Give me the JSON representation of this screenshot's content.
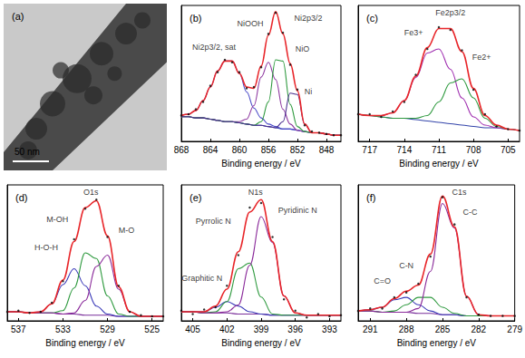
{
  "chart_data": [
    {
      "type": "image",
      "title": "(a)",
      "annotations": [
        {
          "text": "50 nm"
        }
      ]
    },
    {
      "type": "line",
      "title": "(b)",
      "xlabel": "Binding energy / eV",
      "x": [
        868,
        867,
        866,
        865,
        864,
        863,
        862,
        861,
        860,
        859,
        858,
        857,
        856,
        855,
        854,
        853,
        852,
        851,
        850,
        849,
        848,
        847,
        846
      ],
      "xlim": [
        868,
        846
      ],
      "xticks": [
        868,
        864,
        860,
        856,
        852,
        848
      ],
      "ylim": [
        0,
        110
      ],
      "grid": false,
      "tick_labels": "x",
      "series": [
        {
          "type": "line",
          "color": "#3344aa",
          "line_style": "solid",
          "values": [
            20,
            20,
            19,
            19,
            18,
            17,
            16,
            16,
            15,
            14,
            13,
            13,
            12,
            11,
            10,
            10,
            9,
            8,
            7,
            7,
            6,
            5,
            5
          ]
        },
        {
          "type": "line",
          "color": "#4a4ac8",
          "line_style": "solid",
          "values": [
            21,
            22,
            25,
            33,
            44,
            57,
            65,
            65,
            55,
            40,
            27,
            19,
            14,
            12,
            10,
            10,
            9,
            8,
            7,
            7,
            6,
            5,
            5
          ]
        },
        {
          "type": "line",
          "color": "#8e3aa0",
          "line_style": "solid",
          "values": [
            20,
            20,
            19,
            19,
            18,
            17,
            16,
            16,
            16,
            18,
            29,
            52,
            64,
            50,
            26,
            14,
            9,
            8,
            7,
            7,
            6,
            5,
            5
          ]
        },
        {
          "type": "line",
          "color": "#2f9a3f",
          "line_style": "solid",
          "values": [
            20,
            20,
            19,
            19,
            18,
            17,
            16,
            16,
            15,
            14,
            13,
            16,
            32,
            66,
            65,
            30,
            12,
            8,
            7,
            7,
            6,
            5,
            5
          ]
        },
        {
          "type": "line",
          "color": "#4b2f8f",
          "line_style": "solid",
          "values": [
            20,
            20,
            19,
            19,
            18,
            17,
            16,
            16,
            15,
            14,
            13,
            13,
            12,
            11,
            16,
            39,
            38,
            14,
            7,
            7,
            6,
            5,
            5
          ]
        },
        {
          "type": "line",
          "color": "#e8262a",
          "line_style": "solid",
          "values": [
            21,
            22,
            25,
            33,
            44,
            57,
            65,
            65,
            55,
            44,
            43,
            61,
            86,
            105,
            87,
            63,
            41,
            14,
            7,
            7,
            6,
            5,
            5
          ]
        },
        {
          "type": "scatter",
          "color": "#000000",
          "marker": "circle",
          "values": [
            21,
            22,
            26,
            32,
            45,
            56,
            66,
            64,
            56,
            43,
            44,
            60,
            87,
            104,
            88,
            62,
            42,
            13,
            8,
            7,
            6,
            5,
            5
          ]
        }
      ],
      "annotations": [
        {
          "text": "Ni2p3/2",
          "x": 850.5,
          "y": 100
        },
        {
          "text": "Ni2p3/2, sat",
          "x": 863.5,
          "y": 76
        },
        {
          "text": "NiOOH",
          "x": 858.5,
          "y": 95
        },
        {
          "text": "NiO",
          "x": 851.3,
          "y": 75
        },
        {
          "text": "Ni",
          "x": 850.5,
          "y": 40
        }
      ]
    },
    {
      "type": "line",
      "title": "(c)",
      "xlabel": "Binding energy / eV",
      "x": [
        718,
        717,
        716,
        715,
        714,
        713,
        712,
        711,
        710,
        709,
        708,
        707,
        706,
        705,
        704
      ],
      "xlim": [
        718,
        704
      ],
      "xticks": [
        717,
        714,
        711,
        708,
        705
      ],
      "ylim": [
        0,
        100
      ],
      "grid": false,
      "tick_labels": "x",
      "series": [
        {
          "type": "line",
          "color": "#3344aa",
          "line_style": "solid",
          "values": [
            20,
            19,
            18,
            17,
            17,
            16,
            15,
            14,
            13,
            12,
            11,
            10,
            10,
            9,
            8
          ]
        },
        {
          "type": "line",
          "color": "#a030b0",
          "line_style": "solid",
          "values": [
            20,
            19,
            19,
            21,
            30,
            47,
            65,
            68,
            53,
            32,
            18,
            12,
            10,
            9,
            8
          ]
        },
        {
          "type": "line",
          "color": "#2f9a3f",
          "line_style": "solid",
          "values": [
            20,
            19,
            18,
            17,
            17,
            17,
            19,
            29,
            43,
            46,
            32,
            17,
            11,
            9,
            8
          ]
        },
        {
          "type": "line",
          "color": "#e8262a",
          "line_style": "solid",
          "values": [
            20,
            19,
            19,
            21,
            30,
            48,
            69,
            83,
            83,
            66,
            39,
            19,
            12,
            9,
            8
          ]
        },
        {
          "type": "scatter",
          "color": "#000000",
          "marker": "circle",
          "values": [
            20,
            20,
            18,
            22,
            29,
            49,
            68,
            84,
            82,
            67,
            38,
            20,
            11,
            9,
            8
          ]
        }
      ],
      "annotations": [
        {
          "text": "Fe2p3/2",
          "x": 710,
          "y": 95
        },
        {
          "text": "Fe3+",
          "x": 713.2,
          "y": 80
        },
        {
          "text": "Fe2+",
          "x": 707.3,
          "y": 62
        }
      ]
    },
    {
      "type": "line",
      "title": "(d)",
      "xlabel": "Binding energy / eV",
      "x": [
        538,
        537,
        536,
        535,
        534,
        533,
        532,
        531,
        530,
        529,
        528,
        527,
        526,
        525,
        524
      ],
      "xlim": [
        538,
        524
      ],
      "xticks": [
        537,
        533,
        529,
        525
      ],
      "ylim": [
        0,
        120
      ],
      "grid": false,
      "tick_labels": "x",
      "series": [
        {
          "type": "line",
          "color": "#7a2f9a",
          "line_style": "solid",
          "values": [
            8,
            8,
            7,
            7,
            7,
            6,
            6,
            5,
            5,
            5,
            4,
            4,
            4,
            4,
            4
          ]
        },
        {
          "type": "line",
          "color": "#3a3ab8",
          "line_style": "solid",
          "values": [
            8,
            8,
            7,
            8,
            15,
            32,
            46,
            31,
            13,
            6,
            4,
            4,
            4,
            4,
            4
          ]
        },
        {
          "type": "line",
          "color": "#2f9a3f",
          "line_style": "solid",
          "values": [
            8,
            8,
            7,
            7,
            7,
            9,
            29,
            60,
            55,
            22,
            6,
            4,
            4,
            4,
            4
          ]
        },
        {
          "type": "line",
          "color": "#8a2a9a",
          "line_style": "solid",
          "values": [
            8,
            8,
            7,
            7,
            7,
            6,
            7,
            18,
            48,
            58,
            28,
            8,
            4,
            4,
            4
          ]
        },
        {
          "type": "line",
          "color": "#e8262a",
          "line_style": "solid",
          "values": [
            8,
            8,
            7,
            8,
            15,
            36,
            70,
            100,
            106,
            75,
            30,
            8,
            4,
            4,
            4
          ]
        },
        {
          "type": "scatter",
          "color": "#000000",
          "marker": "circle",
          "values": [
            8,
            9,
            7,
            8,
            16,
            35,
            72,
            99,
            107,
            74,
            31,
            8,
            5,
            4,
            4
          ]
        }
      ],
      "annotations": [
        {
          "text": "O1s",
          "x": 530.5,
          "y": 114
        },
        {
          "text": "M-OH",
          "x": 533.5,
          "y": 90
        },
        {
          "text": "H-O-H",
          "x": 534.5,
          "y": 65
        },
        {
          "text": "M-O",
          "x": 527.3,
          "y": 80
        }
      ]
    },
    {
      "type": "line",
      "title": "(e)",
      "xlabel": "Binding energy / eV",
      "x": [
        406,
        405,
        404,
        403,
        402,
        401,
        400,
        399,
        398,
        397,
        396,
        395,
        394,
        393,
        392
      ],
      "xlim": [
        406,
        392
      ],
      "xticks": [
        405,
        402,
        399,
        396,
        393
      ],
      "ylim": [
        0,
        120
      ],
      "grid": false,
      "tick_labels": "x",
      "series": [
        {
          "type": "line",
          "color": "#7a2f9a",
          "line_style": "solid",
          "values": [
            8,
            8,
            7,
            7,
            7,
            6,
            6,
            6,
            5,
            5,
            5,
            5,
            5,
            5,
            5
          ]
        },
        {
          "type": "line",
          "color": "#3a3ab8",
          "line_style": "solid",
          "values": [
            8,
            8,
            8,
            12,
            17,
            13,
            8,
            6,
            5,
            5,
            5,
            5,
            5,
            5,
            5
          ]
        },
        {
          "type": "line",
          "color": "#2f9a3f",
          "line_style": "solid",
          "values": [
            8,
            8,
            7,
            8,
            17,
            46,
            51,
            21,
            6,
            5,
            5,
            5,
            5,
            5,
            5
          ]
        },
        {
          "type": "line",
          "color": "#8a2a9a",
          "line_style": "solid",
          "values": [
            8,
            8,
            7,
            7,
            8,
            14,
            49,
            92,
            69,
            22,
            7,
            5,
            5,
            5,
            5
          ]
        },
        {
          "type": "line",
          "color": "#e8262a",
          "line_style": "solid",
          "values": [
            8,
            8,
            8,
            13,
            28,
            61,
            96,
            107,
            70,
            22,
            7,
            5,
            5,
            5,
            5
          ]
        },
        {
          "type": "scatter",
          "color": "#000000",
          "marker": "circle",
          "values": [
            9,
            6,
            10,
            12,
            31,
            58,
            100,
            104,
            74,
            19,
            9,
            3,
            6,
            4,
            5
          ]
        }
      ],
      "annotations": [
        {
          "text": "N1s",
          "x": 399.5,
          "y": 114
        },
        {
          "text": "Pyridinic N",
          "x": 395.8,
          "y": 98
        },
        {
          "text": "Pyrrolic N",
          "x": 403.2,
          "y": 88
        },
        {
          "text": "Graphitic N",
          "x": 404.2,
          "y": 38
        }
      ]
    },
    {
      "type": "line",
      "title": "(f)",
      "xlabel": "Binding energy / eV",
      "x": [
        292,
        291,
        290,
        289,
        288,
        287,
        286,
        285,
        284,
        283,
        282,
        281,
        280,
        279
      ],
      "xlim": [
        292,
        279
      ],
      "xticks": [
        291,
        288,
        285,
        282,
        279
      ],
      "ylim": [
        0,
        110
      ],
      "grid": false,
      "tick_labels": "x",
      "series": [
        {
          "type": "line",
          "color": "#7a2f9a",
          "line_style": "solid",
          "values": [
            8,
            8,
            7,
            7,
            7,
            6,
            6,
            5,
            5,
            4,
            4,
            4,
            4,
            4
          ]
        },
        {
          "type": "line",
          "color": "#3a3ab8",
          "line_style": "solid",
          "values": [
            8,
            9,
            11,
            17,
            19,
            13,
            8,
            5,
            5,
            4,
            4,
            4,
            4,
            4
          ]
        },
        {
          "type": "line",
          "color": "#2f9a3f",
          "line_style": "solid",
          "values": [
            8,
            8,
            7,
            8,
            13,
            19,
            19,
            11,
            6,
            4,
            4,
            4,
            4,
            4
          ]
        },
        {
          "type": "line",
          "color": "#8a2a9a",
          "line_style": "solid",
          "values": [
            8,
            8,
            7,
            7,
            7,
            10,
            40,
            95,
            75,
            20,
            5,
            4,
            4,
            4
          ]
        },
        {
          "type": "line",
          "color": "#e8262a",
          "line_style": "solid",
          "values": [
            8,
            9,
            11,
            18,
            24,
            29,
            54,
            101,
            76,
            20,
            5,
            4,
            4,
            4
          ]
        },
        {
          "type": "scatter",
          "color": "#000000",
          "marker": "circle",
          "values": [
            8,
            10,
            10,
            19,
            23,
            30,
            52,
            100,
            78,
            19,
            5,
            4,
            4,
            4
          ]
        }
      ],
      "annotations": [
        {
          "text": "C1s",
          "x": 283.6,
          "y": 104
        },
        {
          "text": "C-C",
          "x": 282.7,
          "y": 88
        },
        {
          "text": "C-N",
          "x": 288,
          "y": 45
        },
        {
          "text": "C=O",
          "x": 290,
          "y": 32
        }
      ]
    }
  ]
}
